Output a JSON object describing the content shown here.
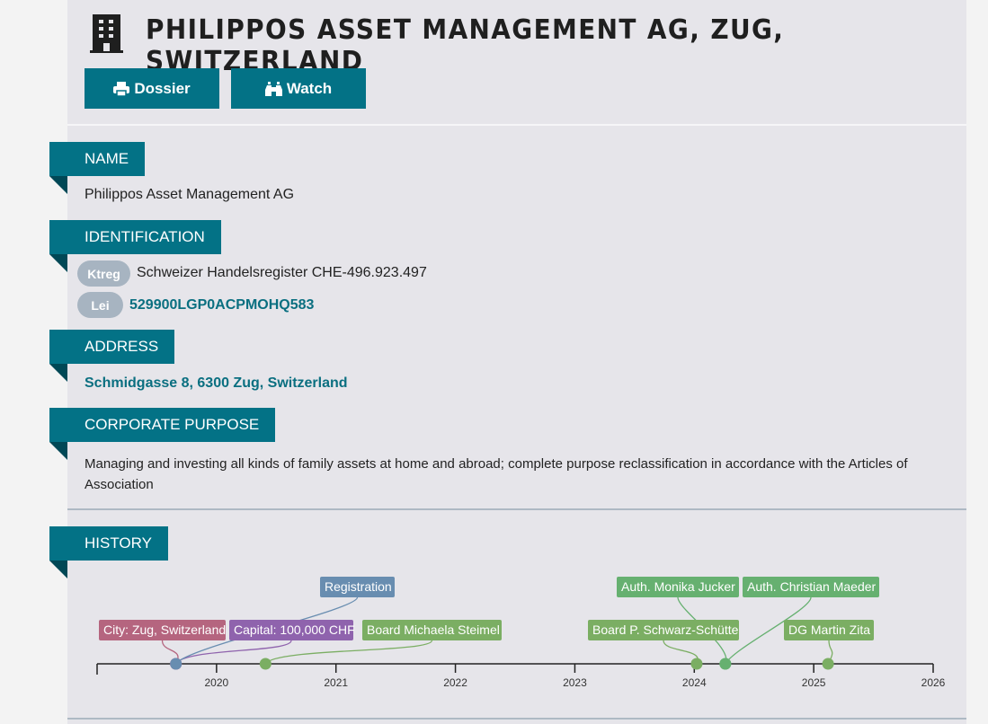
{
  "header": {
    "title": "PHILIPPOS ASSET MANAGEMENT AG, ZUG, SWITZERLAND",
    "building_icon": "building-icon",
    "dossier_label": "Dossier",
    "watch_label": "Watch"
  },
  "sections": {
    "name": {
      "heading": "NAME",
      "value": "Philippos Asset Management AG"
    },
    "identification": {
      "heading": "IDENTIFICATION",
      "items": [
        {
          "badge": "Ktreg",
          "value": "Schweizer Handelsregister CHE-496.923.497"
        },
        {
          "badge": "Lei",
          "value": "529900LGP0ACPMOHQ583"
        }
      ]
    },
    "address": {
      "heading": "ADDRESS",
      "value": "Schmidgasse 8, 6300 Zug, Switzerland"
    },
    "purpose": {
      "heading": "CORPORATE PURPOSE",
      "value": "Managing and investing all kinds of family assets at home and abroad; complete purpose reclassification in accordance with the Articles of Association"
    },
    "history": {
      "heading": "HISTORY"
    }
  },
  "timeline": {
    "axis_range": [
      2019,
      2026
    ],
    "ticks": [
      "2020",
      "2021",
      "2022",
      "2023",
      "2024",
      "2025",
      "2026"
    ],
    "events": [
      {
        "label": "City: Zug, Switzerland",
        "date": 2019.66,
        "color": "#b5657f"
      },
      {
        "label": "Capital: 100,000 CHF",
        "date": 2019.66,
        "color": "#8f63ad"
      },
      {
        "label": "Registration",
        "date": 2019.66,
        "color": "#688db0"
      },
      {
        "label": "Board Michaela Steimel",
        "date": 2020.41,
        "color": "#7bae63"
      },
      {
        "label": "Board P. Schwarz-Schütte",
        "date": 2024.02,
        "color": "#7bae63"
      },
      {
        "label": "Auth. Monika Jucker",
        "date": 2024.26,
        "color": "#66b070"
      },
      {
        "label": "Auth. Christian Maeder",
        "date": 2024.26,
        "color": "#66b070"
      },
      {
        "label": "DG Martin Zita",
        "date": 2025.12,
        "color": "#7bae63"
      }
    ]
  }
}
